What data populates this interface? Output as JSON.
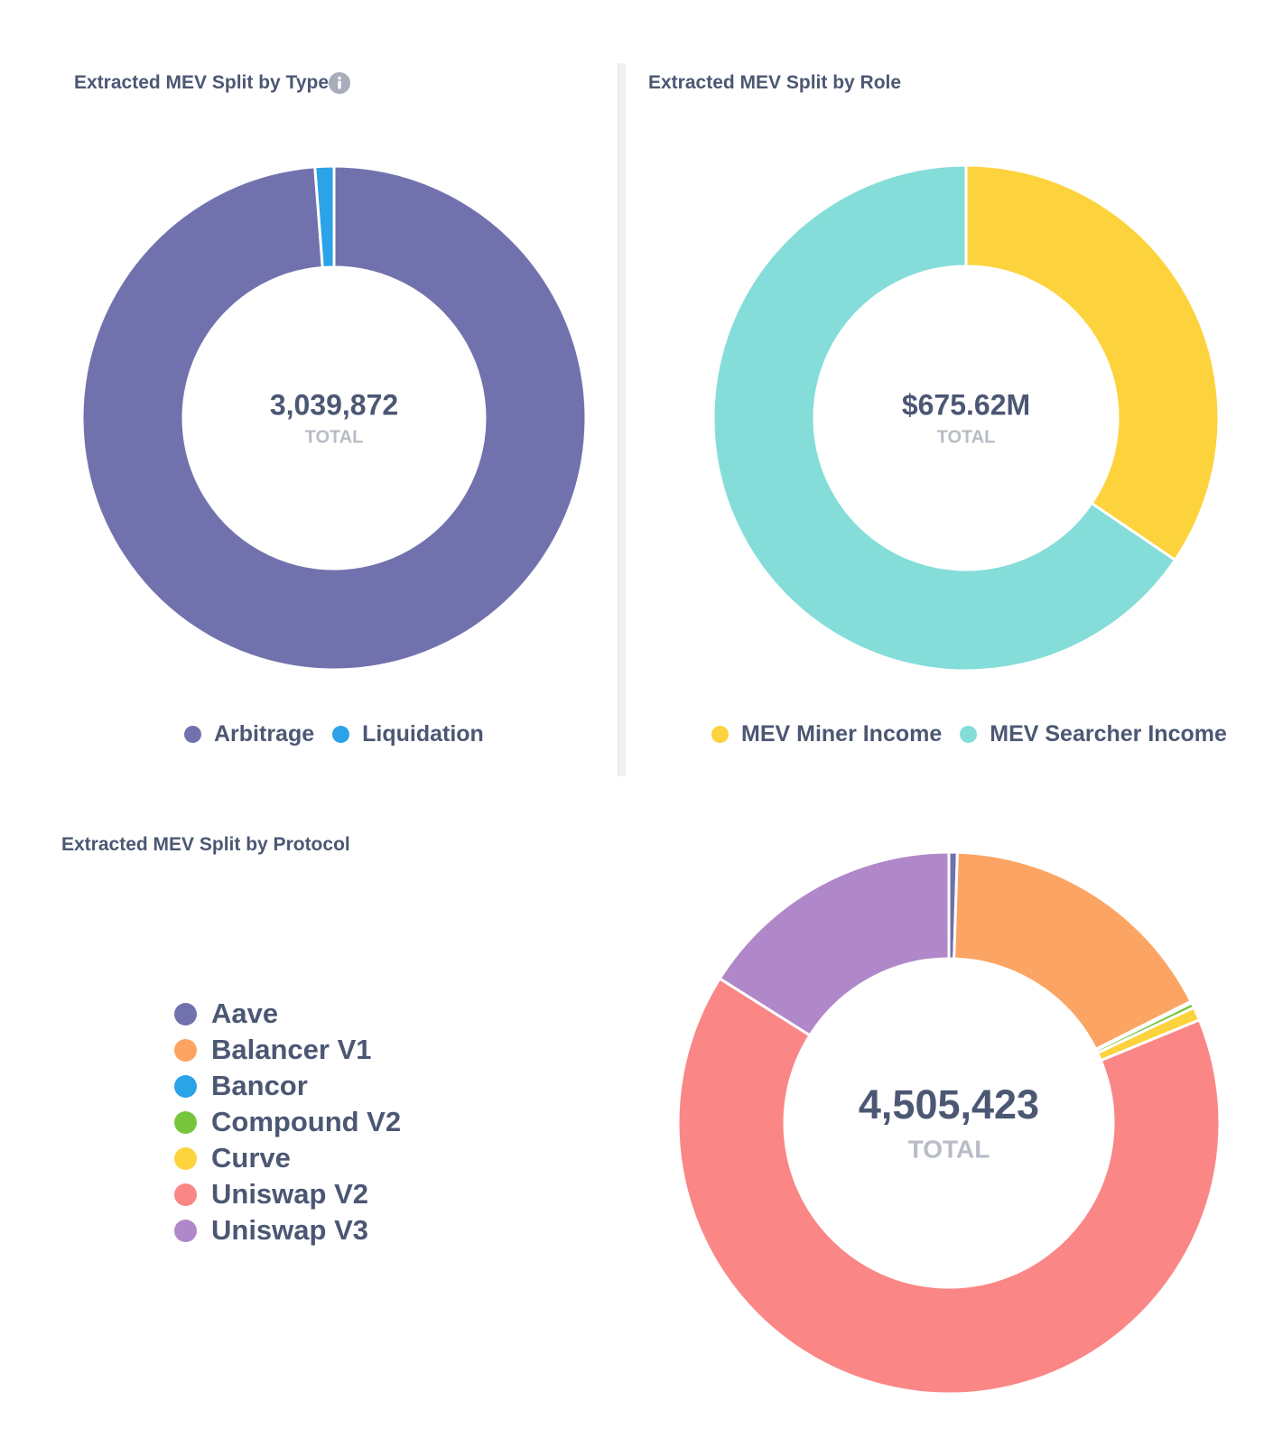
{
  "chart_data": [
    {
      "type": "pie",
      "variant": "donut",
      "title": "Extracted MEV Split by Type",
      "center_value": "3,039,872",
      "center_label": "TOTAL",
      "categories": [
        "Arbitrage",
        "Liquidation"
      ],
      "values": [
        3003000,
        36872
      ],
      "colors": [
        "#7172ad",
        "#2aa3e8"
      ],
      "legend_position": "bottom",
      "has_info_icon": true
    },
    {
      "type": "pie",
      "variant": "donut",
      "title": "Extracted MEV Split by Role",
      "center_value": "$675.62M",
      "center_label": "TOTAL",
      "categories": [
        "MEV Miner Income",
        "MEV Searcher Income"
      ],
      "values": [
        233.09,
        442.53
      ],
      "colors": [
        "#fdd33d",
        "#85ddd9"
      ],
      "legend_position": "bottom"
    },
    {
      "type": "pie",
      "variant": "donut",
      "title": "Extracted MEV Split by Protocol",
      "center_value": "4,505,423",
      "center_label": "TOTAL",
      "categories": [
        "Aave",
        "Balancer V1",
        "Bancor",
        "Compound V2",
        "Curve",
        "Uniswap V2",
        "Uniswap V3"
      ],
      "values": [
        22500,
        770000,
        4500,
        13500,
        36000,
        2936000,
        722923
      ],
      "colors": [
        "#7172ad",
        "#fca463",
        "#2aa3e8",
        "#77c53d",
        "#fdd33d",
        "#fa8686",
        "#b088c9"
      ],
      "legend_position": "left"
    }
  ]
}
